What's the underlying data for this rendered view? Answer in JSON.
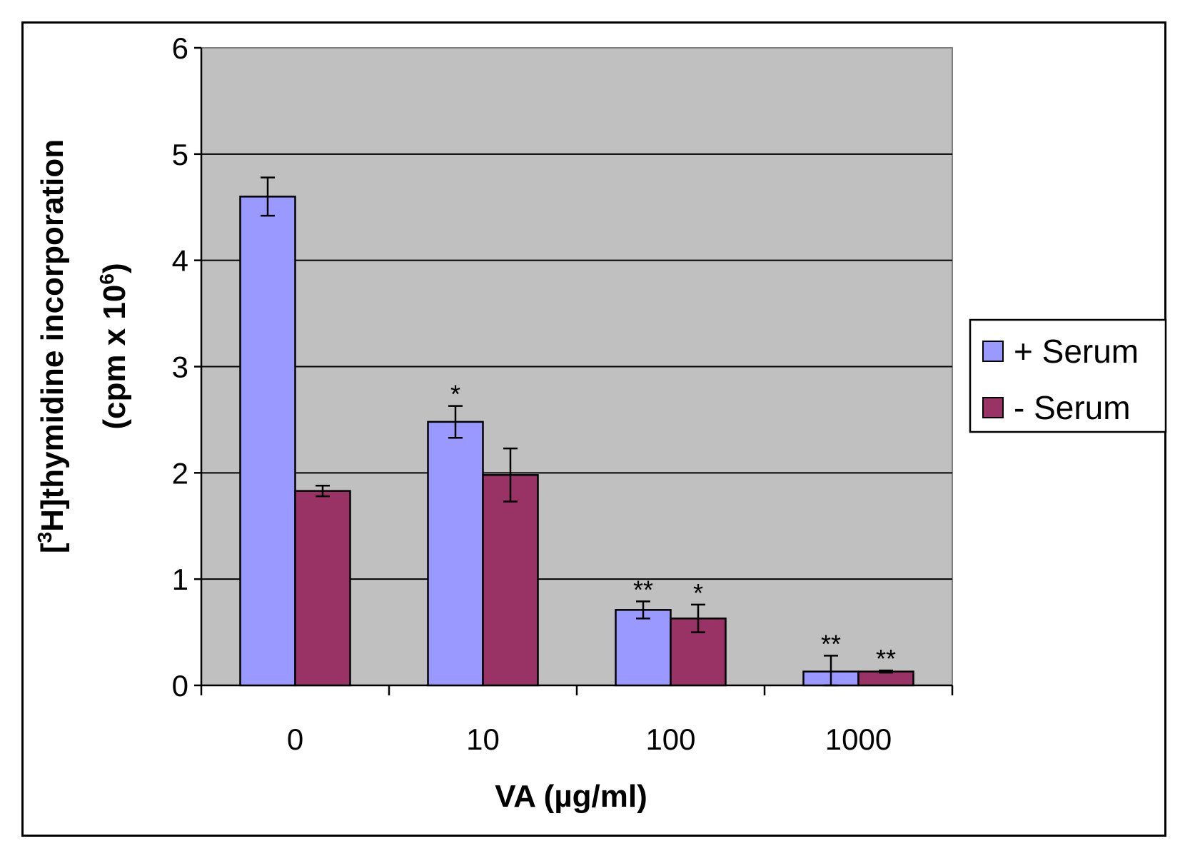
{
  "chart_data": {
    "type": "bar",
    "categories": [
      "0",
      "10",
      "100",
      "1000"
    ],
    "series": [
      {
        "name": "+ Serum",
        "color": "#9999ff",
        "values": [
          4.6,
          2.48,
          0.71,
          0.13
        ],
        "errors": [
          0.18,
          0.15,
          0.08,
          0.15
        ],
        "significance": [
          "",
          "*",
          "**",
          "**"
        ]
      },
      {
        "name": "- Serum",
        "color": "#993366",
        "values": [
          1.83,
          1.98,
          0.63,
          0.13
        ],
        "errors": [
          0.05,
          0.25,
          0.13,
          0.01
        ],
        "significance": [
          "",
          "",
          "*",
          "**"
        ]
      }
    ],
    "ylim": [
      0,
      6
    ],
    "yticks": [
      "0",
      "1",
      "2",
      "3",
      "4",
      "5",
      "6"
    ],
    "xlabel": "VA  (µg/ml)",
    "ylabel_line1_prefix": "[",
    "ylabel_line1_sup": "3",
    "ylabel_line1_rest": "H]thymidine incorporation",
    "ylabel_line2_prefix": "(cpm x 10",
    "ylabel_line2_sup": "6",
    "ylabel_line2_suffix": ")",
    "plot_background": "#c0c0c0",
    "grid": true,
    "legend_position": "right"
  }
}
